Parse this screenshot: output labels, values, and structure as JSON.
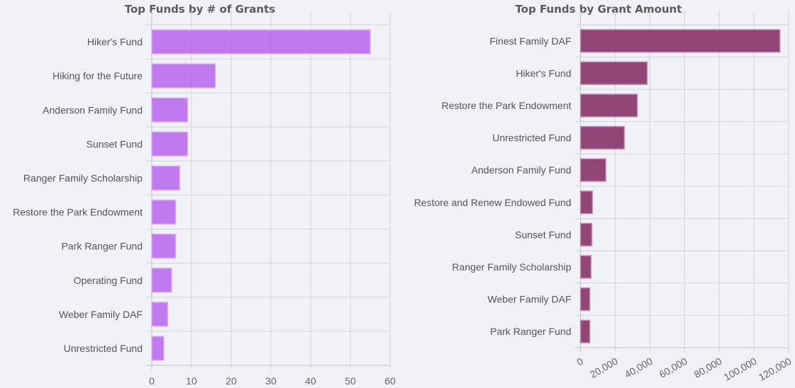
{
  "chart_data": [
    {
      "type": "bar",
      "orientation": "horizontal",
      "title": "Top Funds by # of Grants",
      "categories": [
        "Hiker's Fund",
        "Hiking for the Future",
        "Anderson Family Fund",
        "Sunset Fund",
        "Ranger Family Scholarship",
        "Restore the Park Endowment",
        "Park Ranger Fund",
        "Operating Fund",
        "Weber Family DAF",
        "Unrestricted Fund"
      ],
      "values": [
        55,
        16,
        9,
        9,
        7,
        6,
        6,
        5,
        4,
        3
      ],
      "xlim": [
        0,
        60
      ],
      "xticks": [
        "0",
        "10",
        "20",
        "30",
        "40",
        "50",
        "60"
      ],
      "xtick_values": [
        0,
        10,
        20,
        30,
        40,
        50,
        60
      ],
      "grid": true,
      "color": "#c17aef"
    },
    {
      "type": "bar",
      "orientation": "horizontal",
      "title": "Top Funds by Grant Amount",
      "categories": [
        "Finest Family DAF",
        "Hiker's Fund",
        "Restore the Park Endowment",
        "Unrestricted Fund",
        "Anderson Family Fund",
        "Restore and Renew Endowed Fund",
        "Sunset Fund",
        "Ranger Family Scholarship",
        "Weber Family DAF",
        "Park Ranger Fund"
      ],
      "values": [
        115000,
        38500,
        32800,
        25300,
        14600,
        6900,
        6600,
        6100,
        5400,
        5400
      ],
      "xlim": [
        0,
        120000
      ],
      "xticks": [
        "0",
        "20,000",
        "40,000",
        "60,000",
        "80,000",
        "100,000",
        "120,000"
      ],
      "xtick_values": [
        0,
        20000,
        40000,
        60000,
        80000,
        100000,
        120000
      ],
      "grid": true,
      "color": "#8f4773"
    }
  ]
}
